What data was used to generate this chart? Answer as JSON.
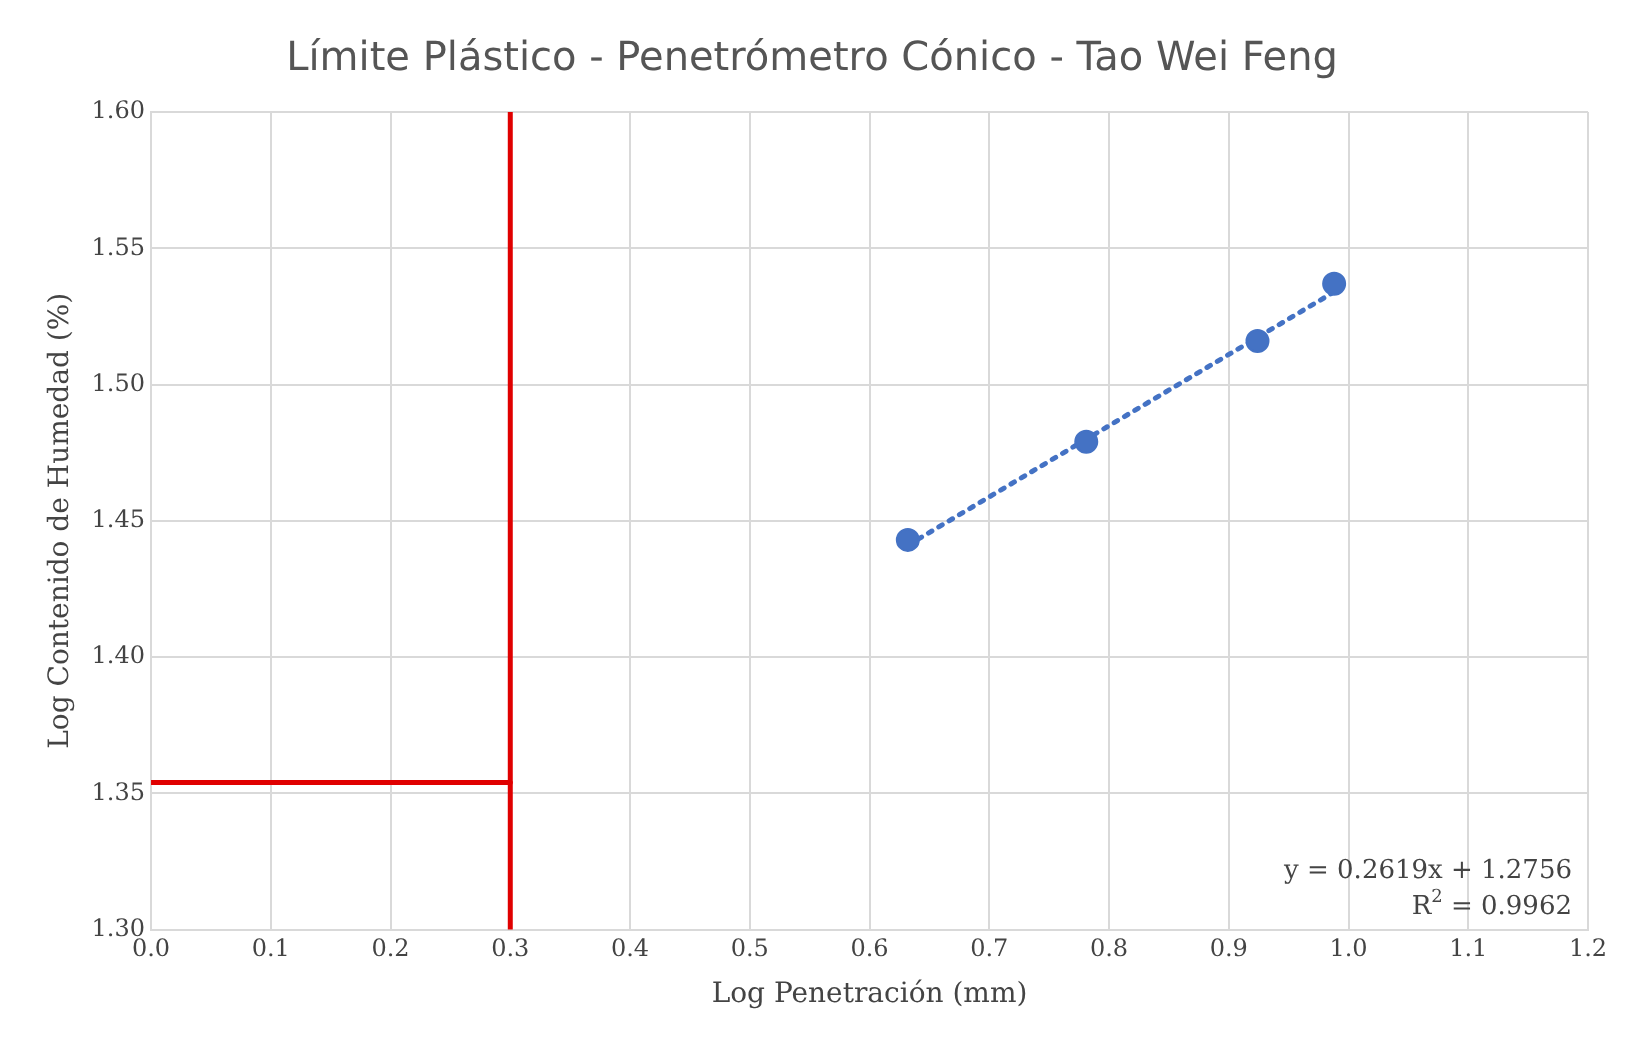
{
  "chart_data": {
    "type": "scatter",
    "title": "Límite Plástico - Penetrómetro Cónico - Tao Wei Feng",
    "xlabel": "Log Penetración (mm)",
    "ylabel": "Log Contenido de Humedad (%)",
    "series": [
      {
        "color": "#4472c4",
        "x": [
          0.632,
          0.781,
          0.924,
          0.988
        ],
        "values": [
          1.443,
          1.479,
          1.516,
          1.537
        ],
        "marker": "circle"
      },
      {
        "type": "line",
        "color": "#4472c4",
        "x": [
          0.632,
          0.988
        ],
        "values": [
          1.441,
          1.534
        ],
        "line_style": "dotted",
        "marker": "none"
      },
      {
        "type": "line",
        "color": "#e00000",
        "x": [
          0,
          0.3
        ],
        "values": [
          1.354,
          1.354
        ],
        "line_style": "solid",
        "marker": "none"
      }
    ],
    "ref_lines": [
      {
        "axis": "x",
        "value": 0.3,
        "color": "#e00000",
        "line_style": "solid"
      }
    ],
    "annotations": [
      "y = 0.2619x + 1.2756",
      "R$^{2}$ = 0.9962"
    ],
    "xlim": [
      0,
      1.2
    ],
    "xticks": [
      {
        "value": 0,
        "label": "0.0"
      },
      0.1,
      0.2,
      0.3,
      0.4,
      0.5,
      0.6,
      0.7,
      0.8,
      0.9,
      {
        "value": 1,
        "label": "1.0"
      },
      1.1,
      1.2
    ],
    "ylim": [
      1.3,
      1.6
    ],
    "yticks": [
      {
        "value": 1.3,
        "label": "1.30"
      },
      1.35,
      {
        "value": 1.4,
        "label": "1.40"
      },
      1.45,
      {
        "value": 1.5,
        "label": "1.50"
      },
      1.55,
      {
        "value": 1.6,
        "label": "1.60"
      }
    ],
    "grid": true,
    "legend": false
  }
}
